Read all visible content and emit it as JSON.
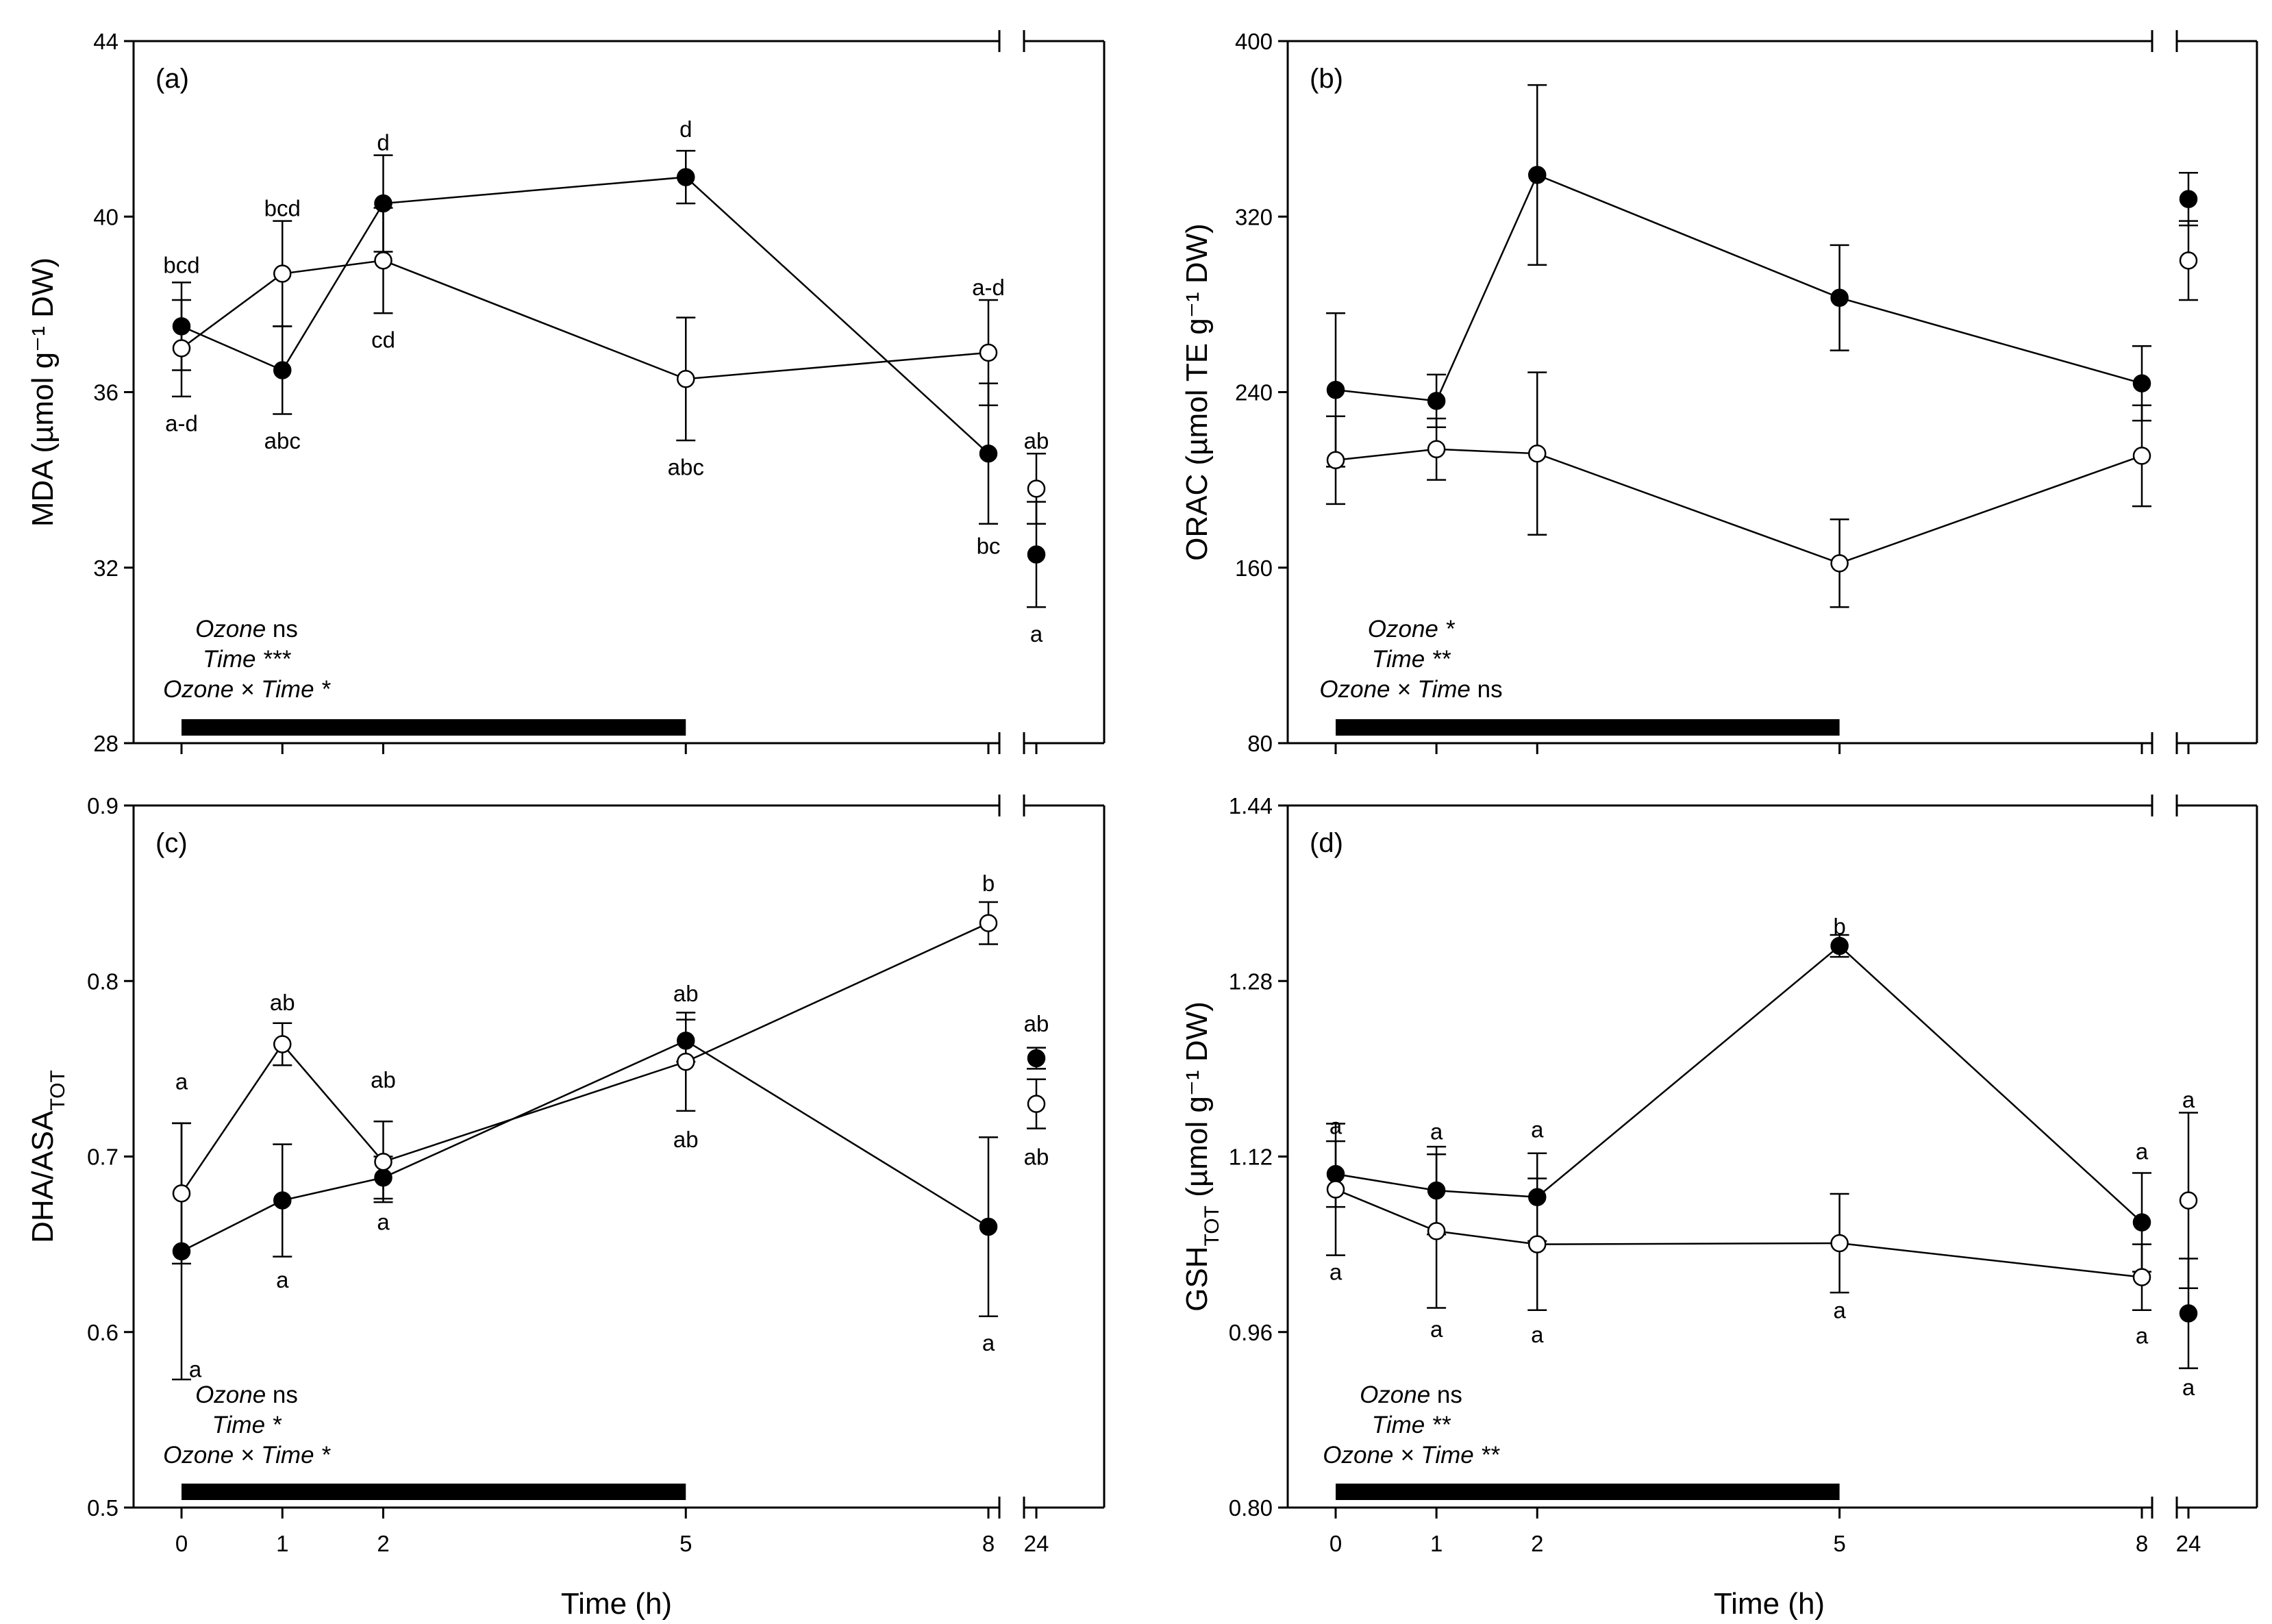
{
  "figure": {
    "x_title": "Time (h)"
  },
  "chart_data": [
    {
      "id": "a",
      "type": "line",
      "panel_label": "(a)",
      "ylabel": "MDA (µmol g⁻¹ DW)",
      "ylim": [
        28,
        44
      ],
      "yticks": [
        "28",
        "32",
        "36",
        "40",
        "44"
      ],
      "xlabel": "Time (h)",
      "x": [
        0,
        1,
        2,
        5,
        8,
        24
      ],
      "x_tick_labels": [
        "0",
        "1",
        "2",
        "5",
        "8",
        "24"
      ],
      "ozone_bar": [
        0,
        5
      ],
      "series": [
        {
          "name": "filled",
          "marker": "filled",
          "values": [
            37.5,
            36.5,
            40.3,
            40.9,
            34.6,
            32.3
          ],
          "errors": [
            1.0,
            1.0,
            1.1,
            0.6,
            1.6,
            1.2
          ]
        },
        {
          "name": "open",
          "marker": "open",
          "values": [
            37.0,
            38.7,
            39.0,
            36.3,
            36.9,
            33.8
          ],
          "errors": [
            1.1,
            1.2,
            1.2,
            1.4,
            1.2,
            0.8
          ]
        }
      ],
      "letters": [
        {
          "x": 0,
          "y": 38.9,
          "text": "bcd"
        },
        {
          "x": 0,
          "y": 35.3,
          "text": "a-d"
        },
        {
          "x": 1,
          "y": 40.2,
          "text": "bcd"
        },
        {
          "x": 1,
          "y": 34.9,
          "text": "abc"
        },
        {
          "x": 2,
          "y": 41.7,
          "text": "d"
        },
        {
          "x": 2,
          "y": 37.2,
          "text": "cd"
        },
        {
          "x": 5,
          "y": 42.0,
          "text": "d"
        },
        {
          "x": 5,
          "y": 34.3,
          "text": "abc"
        },
        {
          "x": 8,
          "y": 38.4,
          "text": "a-d"
        },
        {
          "x": 8,
          "y": 32.5,
          "text": "bc"
        },
        {
          "x": 24,
          "y": 34.9,
          "text": "ab"
        },
        {
          "x": 24,
          "y": 30.5,
          "text": "a"
        }
      ],
      "stats": [
        [
          {
            "t": "Ozone",
            "i": true
          },
          {
            "t": " ns",
            "i": false
          }
        ],
        [
          {
            "t": "Time ***",
            "i": true
          }
        ],
        [
          {
            "t": "Ozone × Time *",
            "i": true
          }
        ]
      ]
    },
    {
      "id": "b",
      "type": "line",
      "panel_label": "(b)",
      "ylabel": "ORAC (µmol TE g⁻¹ DW)",
      "ylim": [
        80,
        400
      ],
      "yticks": [
        "80",
        "160",
        "240",
        "320",
        "400"
      ],
      "xlabel": "Time (h)",
      "x": [
        0,
        1,
        2,
        5,
        8,
        24
      ],
      "x_tick_labels": [
        "0",
        "1",
        "2",
        "5",
        "8",
        "24"
      ],
      "ozone_bar": [
        0,
        5
      ],
      "series": [
        {
          "name": "filled",
          "marker": "filled",
          "values": [
            241,
            236,
            339,
            283,
            244,
            328
          ],
          "errors": [
            35,
            12,
            41,
            24,
            17,
            12
          ]
        },
        {
          "name": "open",
          "marker": "open",
          "values": [
            209,
            214,
            212,
            162,
            211,
            300
          ],
          "errors": [
            20,
            14,
            37,
            20,
            23,
            18
          ]
        }
      ],
      "letters": [],
      "stats": [
        [
          {
            "t": "Ozone *",
            "i": true
          }
        ],
        [
          {
            "t": "Time **",
            "i": true
          }
        ],
        [
          {
            "t": "Ozone × Time",
            "i": true
          },
          {
            "t": " ns",
            "i": false
          }
        ]
      ]
    },
    {
      "id": "c",
      "type": "line",
      "panel_label": "(c)",
      "ylabel": "DHA/ASA",
      "ylabel_sub": "TOT",
      "ylim": [
        0.5,
        0.9
      ],
      "yticks": [
        "0.5",
        "0.6",
        "0.7",
        "0.8",
        "0.9"
      ],
      "xlabel": "Time (h)",
      "x": [
        0,
        1,
        2,
        5,
        8,
        24
      ],
      "x_tick_labels": [
        "0",
        "1",
        "2",
        "5",
        "8",
        "24"
      ],
      "ozone_bar": [
        0,
        5
      ],
      "series": [
        {
          "name": "filled",
          "marker": "filled",
          "values": [
            0.646,
            0.675,
            0.688,
            0.766,
            0.66,
            0.756
          ],
          "errors": [
            0.073,
            0.032,
            0.012,
            0.012,
            0.051,
            0.006
          ]
        },
        {
          "name": "open",
          "marker": "open",
          "values": [
            0.679,
            0.764,
            0.697,
            0.754,
            0.833,
            0.73
          ],
          "errors": [
            0.04,
            0.012,
            0.023,
            0.028,
            0.012,
            0.014
          ]
        }
      ],
      "letters": [
        {
          "x": 0,
          "y": 0.743,
          "text": "a"
        },
        {
          "x": 0.25,
          "y": 0.579,
          "text": "a",
          "dx": 20
        },
        {
          "x": 1,
          "y": 0.788,
          "text": "ab"
        },
        {
          "x": 1,
          "y": 0.63,
          "text": "a"
        },
        {
          "x": 2,
          "y": 0.744,
          "text": "ab"
        },
        {
          "x": 2,
          "y": 0.663,
          "text": "a"
        },
        {
          "x": 5,
          "y": 0.793,
          "text": "ab"
        },
        {
          "x": 5,
          "y": 0.71,
          "text": "ab"
        },
        {
          "x": 8,
          "y": 0.856,
          "text": "b"
        },
        {
          "x": 8,
          "y": 0.594,
          "text": "a"
        },
        {
          "x": 24,
          "y": 0.776,
          "text": "ab"
        },
        {
          "x": 24,
          "y": 0.7,
          "text": "ab"
        }
      ],
      "stats": [
        [
          {
            "t": "Ozone",
            "i": true
          },
          {
            "t": " ns",
            "i": false
          }
        ],
        [
          {
            "t": "Time *",
            "i": true
          }
        ],
        [
          {
            "t": "Ozone × Time *",
            "i": true
          }
        ]
      ]
    },
    {
      "id": "d",
      "type": "line",
      "panel_label": "(d)",
      "ylabel": "GSH",
      "ylabel_sub": "TOT",
      "ylabel_tail": " (µmol g⁻¹ DW)",
      "ylim": [
        0.8,
        1.44
      ],
      "yticks": [
        "0.80",
        "0.96",
        "1.12",
        "1.28",
        "1.44"
      ],
      "xlabel": "Time (h)",
      "x": [
        0,
        1,
        2,
        5,
        8,
        24
      ],
      "x_tick_labels": [
        "0",
        "1",
        "2",
        "5",
        "8",
        "24"
      ],
      "ozone_bar": [
        0,
        5
      ],
      "series": [
        {
          "name": "filled",
          "marker": "filled",
          "values": [
            1.104,
            1.089,
            1.083,
            1.312,
            1.06,
            0.977
          ],
          "errors": [
            0.03,
            0.04,
            0.04,
            0.01,
            0.045,
            0.05
          ]
        },
        {
          "name": "open",
          "marker": "open",
          "values": [
            1.09,
            1.052,
            1.04,
            1.041,
            1.01,
            1.08
          ],
          "errors": [
            0.06,
            0.07,
            0.06,
            0.045,
            0.03,
            0.08
          ]
        }
      ],
      "letters": [
        {
          "x": 0,
          "y": 1.148,
          "text": "a"
        },
        {
          "x": 0,
          "y": 1.015,
          "text": "a"
        },
        {
          "x": 1,
          "y": 1.143,
          "text": "a"
        },
        {
          "x": 1,
          "y": 0.963,
          "text": "a"
        },
        {
          "x": 2,
          "y": 1.145,
          "text": "a"
        },
        {
          "x": 2,
          "y": 0.958,
          "text": "a"
        },
        {
          "x": 5,
          "y": 1.33,
          "text": "b"
        },
        {
          "x": 5,
          "y": 0.98,
          "text": "a"
        },
        {
          "x": 8,
          "y": 1.125,
          "text": "a"
        },
        {
          "x": 8,
          "y": 0.957,
          "text": "a"
        },
        {
          "x": 24,
          "y": 1.172,
          "text": "a"
        },
        {
          "x": 24,
          "y": 0.91,
          "text": "a"
        }
      ],
      "stats": [
        [
          {
            "t": "Ozone",
            "i": true
          },
          {
            "t": " ns",
            "i": false
          }
        ],
        [
          {
            "t": "Time **",
            "i": true
          }
        ],
        [
          {
            "t": "Ozone × Time **",
            "i": true
          }
        ]
      ]
    }
  ]
}
